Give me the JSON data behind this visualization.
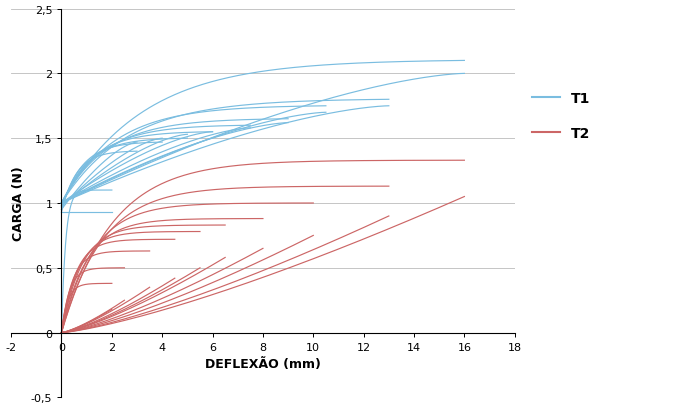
{
  "title": "",
  "xlabel": "DEFLEXÃO (mm)",
  "ylabel": "CARGA (N)",
  "xlim": [
    -2,
    18
  ],
  "ylim": [
    -0.5,
    2.5
  ],
  "xticks": [
    -2,
    0,
    2,
    4,
    6,
    8,
    10,
    12,
    14,
    16,
    18
  ],
  "yticks": [
    -0.5,
    0,
    0.5,
    1.0,
    1.5,
    2.0,
    2.5
  ],
  "color_T1": "#7abde0",
  "color_T2": "#cc6666",
  "background": "#ffffff",
  "legend_T1": "T1",
  "legend_T2": "T2",
  "xlabel_fontsize": 9,
  "ylabel_fontsize": 9,
  "tick_fontsize": 8,
  "t1_loops": [
    [
      2.0,
      1.1,
      0.0,
      0.93,
      0.93
    ],
    [
      3.0,
      1.4,
      0.93,
      1.47,
      0.95
    ],
    [
      4.0,
      1.47,
      0.95,
      1.5,
      0.97
    ],
    [
      5.0,
      1.5,
      0.97,
      1.53,
      0.98
    ],
    [
      6.0,
      1.55,
      0.98,
      1.55,
      1.0
    ],
    [
      7.5,
      1.6,
      1.0,
      1.58,
      1.0
    ],
    [
      9.0,
      1.65,
      1.0,
      1.62,
      1.0
    ],
    [
      10.5,
      1.75,
      1.0,
      1.7,
      1.0
    ],
    [
      13.0,
      1.8,
      1.0,
      1.75,
      1.0
    ],
    [
      16.0,
      2.1,
      1.0,
      2.0,
      1.0
    ]
  ],
  "t2_loops": [
    [
      2.0,
      0.38,
      0.0,
      0.18,
      0.0
    ],
    [
      2.5,
      0.5,
      0.0,
      0.25,
      0.0
    ],
    [
      3.5,
      0.63,
      0.0,
      0.35,
      0.0
    ],
    [
      4.5,
      0.72,
      0.0,
      0.42,
      0.0
    ],
    [
      5.5,
      0.78,
      0.0,
      0.5,
      0.0
    ],
    [
      6.5,
      0.83,
      0.0,
      0.58,
      0.0
    ],
    [
      8.0,
      0.88,
      0.0,
      0.65,
      0.0
    ],
    [
      10.0,
      1.0,
      0.0,
      0.75,
      0.0
    ],
    [
      13.0,
      1.13,
      0.0,
      0.9,
      0.0
    ],
    [
      16.0,
      1.33,
      0.0,
      1.05,
      0.0
    ]
  ]
}
